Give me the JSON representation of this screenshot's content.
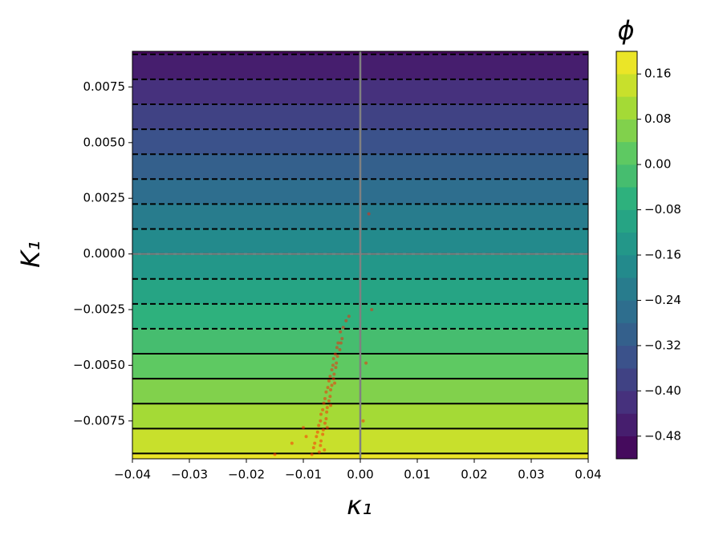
{
  "chart_data": {
    "type": "contour",
    "title": "ϕ",
    "x_label": "κ₁",
    "y_label": "K₁",
    "xlim": [
      -0.04,
      0.04
    ],
    "ylim": [
      -0.0092,
      0.0091
    ],
    "xticks": [
      {
        "value": -0.04,
        "label": "−0.04"
      },
      {
        "value": -0.03,
        "label": "−0.03"
      },
      {
        "value": -0.02,
        "label": "−0.02"
      },
      {
        "value": -0.01,
        "label": "−0.01"
      },
      {
        "value": 0,
        "label": "0.00"
      },
      0.01,
      0.02,
      0.03,
      0.04
    ],
    "yticks": [
      {
        "value": -0.0075,
        "label": "−0.0075"
      },
      {
        "value": -0.005,
        "label": "−0.0050"
      },
      {
        "value": -0.0025,
        "label": "−0.0025"
      },
      {
        "value": 0,
        "label": "0.0000"
      },
      0.0025,
      {
        "value": 0.005,
        "label": "0.0050"
      },
      0.0075
    ],
    "colormap": "viridis",
    "field": {
      "phi_at_K1_zero": -0.16,
      "dphi_dK1": -35.7
    },
    "levels": [
      -0.52,
      -0.48,
      -0.44,
      -0.4,
      -0.36,
      -0.32,
      -0.28,
      -0.24,
      -0.2,
      -0.16,
      -0.12,
      -0.08,
      -0.04,
      0,
      0.04,
      0.08,
      0.12,
      0.16,
      0.2
    ],
    "contour_levels": [
      -0.48,
      -0.44,
      -0.4,
      -0.36,
      -0.32,
      -0.28,
      -0.24,
      -0.2,
      -0.16,
      -0.12,
      -0.08,
      -0.04,
      0,
      0.04,
      0.08,
      0.12,
      0.16
    ],
    "negative_linestyle": "dashed",
    "colorbar_ticks": [
      {
        "value": -0.48,
        "label": "−0.48"
      },
      {
        "value": -0.4,
        "label": "−0.40"
      },
      {
        "value": -0.32,
        "label": "−0.32"
      },
      {
        "value": -0.24,
        "label": "−0.24"
      },
      {
        "value": -0.16,
        "label": "−0.16"
      },
      {
        "value": -0.08,
        "label": "−0.08"
      },
      {
        "value": 0,
        "label": "0.00"
      },
      0.08,
      0.16
    ],
    "reference_lines": {
      "x": 0,
      "y": 0,
      "color": "#808080"
    },
    "points": {
      "color": "#ff2000",
      "x": [
        -0.0035,
        -0.003,
        -0.0039,
        -0.0032,
        -0.0041,
        -0.0034,
        -0.0044,
        -0.0036,
        -0.0047,
        -0.004,
        -0.0048,
        -0.0042,
        -0.005,
        -0.0043,
        -0.0053,
        -0.0046,
        -0.0055,
        -0.0047,
        -0.0057,
        -0.005,
        -0.006,
        -0.0052,
        -0.0062,
        -0.0053,
        -0.0064,
        -0.0055,
        -0.0066,
        -0.0058,
        -0.0069,
        -0.0059,
        -0.007,
        -0.006,
        -0.0073,
        -0.0062,
        -0.0075,
        -0.0065,
        -0.0077,
        -0.0066,
        -0.008,
        -0.0069,
        -0.0082,
        -0.007,
        -0.0085,
        -0.0072,
        -0.0045,
        -0.0052,
        -0.0058,
        -0.0063,
        -0.015,
        -0.012,
        -0.01,
        -0.0095,
        0.001,
        0.002,
        0.0015,
        -0.002,
        0.0005,
        -0.0025
      ],
      "y": [
        -0.0035,
        -0.0033,
        -0.004,
        -0.0038,
        -0.0042,
        -0.004,
        -0.0045,
        -0.0043,
        -0.0047,
        -0.0046,
        -0.005,
        -0.0049,
        -0.0052,
        -0.0051,
        -0.0055,
        -0.0054,
        -0.0057,
        -0.0056,
        -0.006,
        -0.0059,
        -0.0062,
        -0.0061,
        -0.0065,
        -0.0064,
        -0.0067,
        -0.0066,
        -0.007,
        -0.0069,
        -0.0072,
        -0.0071,
        -0.0075,
        -0.0074,
        -0.0077,
        -0.0076,
        -0.008,
        -0.0079,
        -0.0082,
        -0.0081,
        -0.0085,
        -0.0084,
        -0.0087,
        -0.0086,
        -0.009,
        -0.0089,
        -0.0058,
        -0.0068,
        -0.0078,
        -0.0088,
        -0.009,
        -0.0085,
        -0.0078,
        -0.0082,
        -0.0049,
        -0.0025,
        0.0018,
        -0.0028,
        -0.0075,
        -0.003
      ]
    }
  }
}
